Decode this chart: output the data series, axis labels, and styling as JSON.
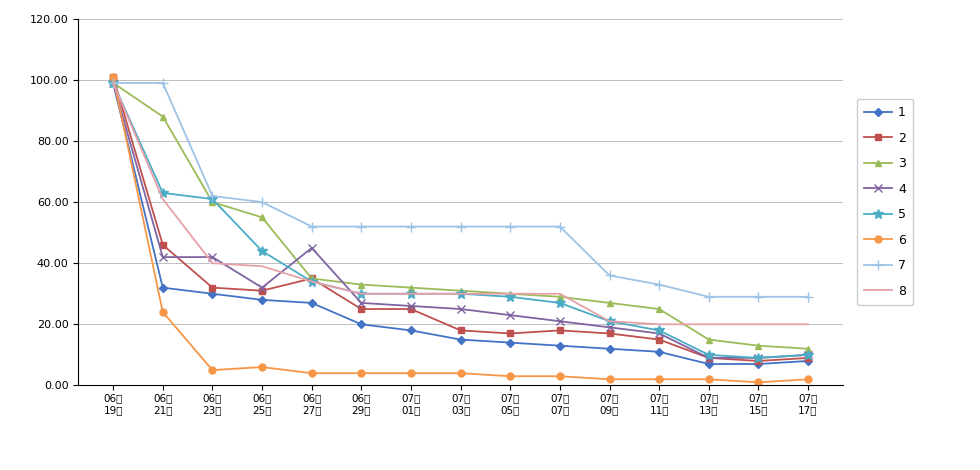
{
  "x_labels": [
    "06월\n19일",
    "06월\n21일",
    "06월\n23일",
    "06월\n25일",
    "06월\n27일",
    "06월\n29일",
    "07월\n01일",
    "07월\n03일",
    "07월\n05일",
    "07월\n07일",
    "07월\n09일",
    "07월\n11일",
    "07월\n13일",
    "07월\n15일",
    "07월\n17일"
  ],
  "series": [
    {
      "label": "1",
      "color": "#4472C4",
      "marker": "D",
      "markersize": 4,
      "linestyle": "-",
      "values": [
        99,
        32,
        30,
        28,
        27,
        20,
        18,
        15,
        14,
        13,
        12,
        11,
        7,
        7,
        8
      ]
    },
    {
      "label": "2",
      "color": "#C0504D",
      "marker": "s",
      "markersize": 5,
      "linestyle": "-",
      "values": [
        101,
        46,
        32,
        31,
        35,
        25,
        25,
        18,
        17,
        18,
        17,
        15,
        9,
        8,
        9
      ]
    },
    {
      "label": "3",
      "color": "#9BBB59",
      "marker": "^",
      "markersize": 5,
      "linestyle": "-",
      "values": [
        99,
        88,
        60,
        55,
        35,
        33,
        32,
        31,
        30,
        29,
        27,
        25,
        15,
        13,
        12
      ]
    },
    {
      "label": "4",
      "color": "#8064A2",
      "marker": "x",
      "markersize": 6,
      "linestyle": "-",
      "values": [
        99,
        42,
        42,
        32,
        45,
        27,
        26,
        25,
        23,
        21,
        19,
        17,
        9,
        9,
        10
      ]
    },
    {
      "label": "5",
      "color": "#4BACC6",
      "marker": "*",
      "markersize": 7,
      "linestyle": "-",
      "values": [
        99,
        63,
        61,
        44,
        34,
        30,
        30,
        30,
        29,
        27,
        21,
        18,
        10,
        9,
        10
      ]
    },
    {
      "label": "6",
      "color": "#F79646",
      "marker": "o",
      "markersize": 5,
      "linestyle": "-",
      "values": [
        101,
        24,
        5,
        6,
        4,
        4,
        4,
        4,
        3,
        3,
        2,
        2,
        2,
        1,
        2
      ]
    },
    {
      "label": "7",
      "color": "#9DC3E6",
      "marker": "+",
      "markersize": 7,
      "linestyle": "-",
      "values": [
        99,
        99,
        62,
        60,
        52,
        52,
        52,
        52,
        52,
        52,
        36,
        33,
        29,
        29,
        29
      ]
    },
    {
      "label": "8",
      "color": "#E8A0A8",
      "marker": "",
      "markersize": 0,
      "linestyle": "-",
      "values": [
        99,
        61,
        40,
        39,
        34,
        30,
        30,
        30,
        30,
        30,
        21,
        20,
        20,
        20,
        20
      ]
    }
  ],
  "ylim": [
    0,
    120
  ],
  "yticks": [
    0.0,
    20.0,
    40.0,
    60.0,
    80.0,
    100.0,
    120.0
  ],
  "grid": true,
  "background_color": "#ffffff",
  "figwidth": 9.8,
  "figheight": 4.7,
  "dpi": 100
}
